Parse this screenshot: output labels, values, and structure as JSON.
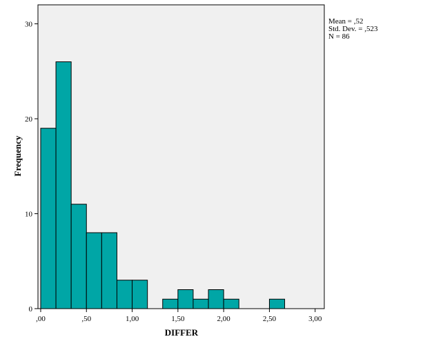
{
  "chart_data": {
    "type": "bar",
    "subtype": "histogram",
    "xlabel": "DIFFER",
    "ylabel": "Frequency",
    "xlim": [
      -0.03,
      3.1
    ],
    "ylim": [
      0,
      32
    ],
    "x_ticks": [
      {
        "value": 0.0,
        "label": ",00"
      },
      {
        "value": 0.5,
        "label": ",50"
      },
      {
        "value": 1.0,
        "label": "1,00"
      },
      {
        "value": 1.5,
        "label": "1,50"
      },
      {
        "value": 2.0,
        "label": "2,00"
      },
      {
        "value": 2.5,
        "label": "2,50"
      },
      {
        "value": 3.0,
        "label": "3,00"
      }
    ],
    "y_ticks": [
      {
        "value": 0,
        "label": "0"
      },
      {
        "value": 10,
        "label": "10"
      },
      {
        "value": 20,
        "label": "20"
      },
      {
        "value": 30,
        "label": "30"
      }
    ],
    "bins": [
      {
        "start": 0.0,
        "end": 0.1667,
        "count": 19
      },
      {
        "start": 0.1667,
        "end": 0.3333,
        "count": 26
      },
      {
        "start": 0.3333,
        "end": 0.5,
        "count": 11
      },
      {
        "start": 0.5,
        "end": 0.6667,
        "count": 8
      },
      {
        "start": 0.6667,
        "end": 0.8333,
        "count": 8
      },
      {
        "start": 0.8333,
        "end": 1.0,
        "count": 3
      },
      {
        "start": 1.0,
        "end": 1.1667,
        "count": 3
      },
      {
        "start": 1.1667,
        "end": 1.3333,
        "count": 0
      },
      {
        "start": 1.3333,
        "end": 1.5,
        "count": 1
      },
      {
        "start": 1.5,
        "end": 1.6667,
        "count": 2
      },
      {
        "start": 1.6667,
        "end": 1.8333,
        "count": 1
      },
      {
        "start": 1.8333,
        "end": 2.0,
        "count": 2
      },
      {
        "start": 2.0,
        "end": 2.1667,
        "count": 1
      },
      {
        "start": 2.1667,
        "end": 2.3333,
        "count": 0
      },
      {
        "start": 2.3333,
        "end": 2.5,
        "count": 0
      },
      {
        "start": 2.5,
        "end": 2.6667,
        "count": 1
      }
    ],
    "stats": [
      "Mean = ,52",
      "Std. Dev. = ,523",
      "N = 86"
    ],
    "colors": {
      "bar_fill": "#00A6A6",
      "bar_stroke": "#000000",
      "plot_background": "#F0F0F0",
      "page_background": "#FFFFFF"
    },
    "grid": false,
    "legend": "none"
  }
}
